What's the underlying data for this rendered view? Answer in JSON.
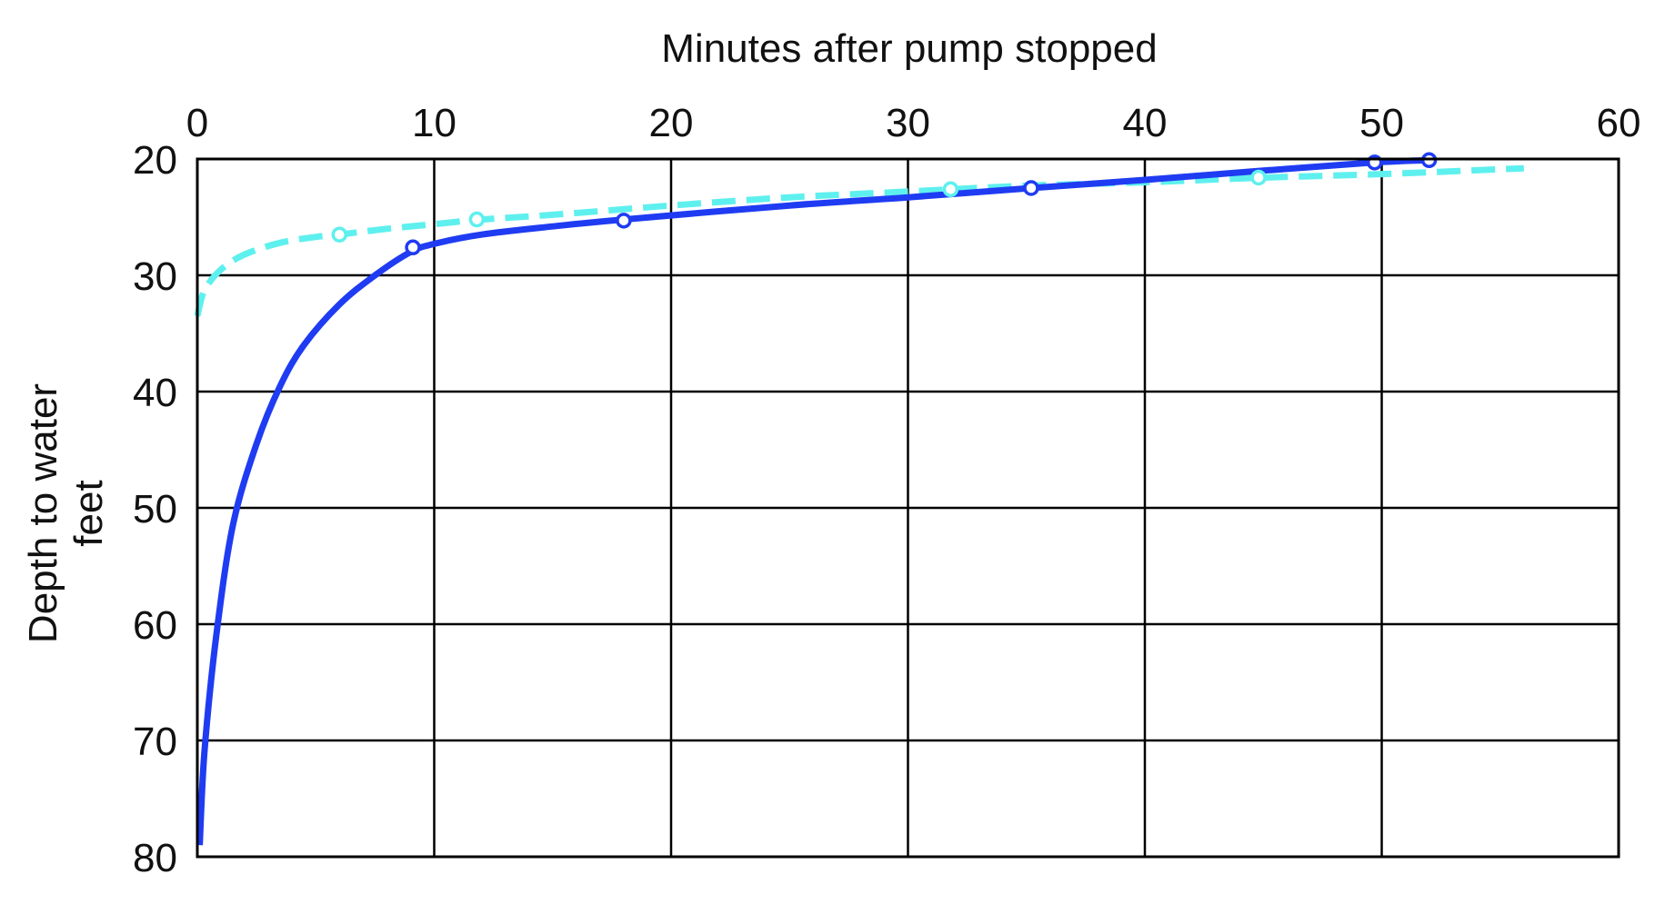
{
  "chart_data": {
    "type": "line",
    "xlabel": "Minutes after pump stopped",
    "ylabel": [
      "Depth to water",
      "feet"
    ],
    "xlim": [
      0,
      60
    ],
    "ylim": [
      20,
      80
    ],
    "y_inverted": true,
    "x_axis_position": "top",
    "grid": true,
    "x_ticks": [
      0,
      10,
      20,
      30,
      40,
      50,
      60
    ],
    "y_ticks": [
      20,
      30,
      40,
      50,
      60,
      70,
      80
    ],
    "series": [
      {
        "style": "solid",
        "color": "#1f3cf2",
        "x": [
          0.1,
          0.3,
          0.8,
          1.5,
          2.5,
          3.5,
          4.5,
          6,
          7.5,
          9,
          10,
          12,
          15,
          18,
          25,
          30,
          35.2,
          40,
          45,
          49.7,
          52
        ],
        "y": [
          79,
          71,
          61,
          51.5,
          44.5,
          39.5,
          36,
          32.5,
          30,
          28,
          27.3,
          26.5,
          25.8,
          25.2,
          24,
          23.3,
          22.5,
          21.8,
          21,
          20.3,
          20.1
        ],
        "markers": [
          {
            "x": 9.1,
            "y": 27.6
          },
          {
            "x": 18,
            "y": 25.3
          },
          {
            "x": 35.2,
            "y": 22.5
          },
          {
            "x": 49.7,
            "y": 20.3
          },
          {
            "x": 52,
            "y": 20.1
          }
        ]
      },
      {
        "style": "dashed",
        "color": "#5ef0ee",
        "x": [
          0,
          0.3,
          1,
          2,
          3.5,
          5,
          6,
          8,
          10,
          12,
          15,
          20,
          25,
          30,
          35,
          40,
          45,
          50,
          56
        ],
        "y": [
          33.5,
          31.3,
          29.5,
          28.2,
          27.2,
          26.7,
          26.5,
          26.0,
          25.6,
          25.2,
          24.8,
          24.0,
          23.3,
          22.8,
          22.3,
          22.0,
          21.6,
          21.3,
          20.8
        ],
        "markers": [
          {
            "x": 6,
            "y": 26.5
          },
          {
            "x": 11.8,
            "y": 25.2
          },
          {
            "x": 31.8,
            "y": 22.6
          },
          {
            "x": 44.8,
            "y": 21.6
          }
        ]
      }
    ]
  }
}
